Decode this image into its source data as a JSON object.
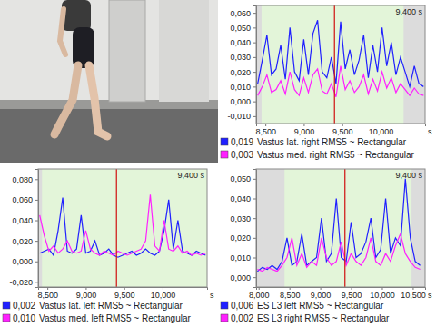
{
  "chart_data": [
    {
      "type": "line",
      "legend": "bottom",
      "grid": false,
      "x_label": "s",
      "x": [
        8400,
        8460,
        8520,
        8580,
        8640,
        8700,
        8760,
        8820,
        8880,
        8940,
        9000,
        9060,
        9120,
        9180,
        9240,
        9300,
        9360,
        9420,
        9480,
        9540,
        9600,
        9660,
        9720,
        9780,
        9840,
        9900,
        9960,
        10020,
        10080,
        10140,
        10200,
        10260,
        10320,
        10380,
        10440,
        10500,
        10560
      ],
      "xlim": [
        8380,
        10580
      ],
      "xticks": [
        {
          "value": 8500,
          "label": "8,500"
        },
        {
          "value": 9000,
          "label": "9,000"
        },
        {
          "value": 9500,
          "label": "9,500"
        },
        {
          "value": 10000,
          "label": "10,000"
        }
      ],
      "ylim": [
        -0.015,
        0.065
      ],
      "yticks": [
        {
          "value": -0.01,
          "label": "-0,010"
        },
        {
          "value": 0,
          "label": "0,000"
        },
        {
          "value": 0.01,
          "label": "0,010"
        },
        {
          "value": 0.02,
          "label": "0,020"
        },
        {
          "value": 0.03,
          "label": "0,030"
        },
        {
          "value": 0.04,
          "label": "0,040"
        },
        {
          "value": 0.05,
          "label": "0,050"
        },
        {
          "value": 0.06,
          "label": "0,060"
        }
      ],
      "highlight": [
        8450,
        10300
      ],
      "cursor": {
        "value": 9400,
        "label": "9,400 s"
      },
      "series": [
        {
          "name": "Vastus lat. right RMS5 ~ Rectangular",
          "color": "#2020ff",
          "cursor_value": {
            "value": 0.019,
            "label": "0,019"
          },
          "values": [
            0.012,
            0.028,
            0.045,
            0.018,
            0.022,
            0.038,
            0.015,
            0.05,
            0.02,
            0.014,
            0.042,
            0.018,
            0.046,
            0.055,
            0.02,
            0.016,
            0.03,
            0.012,
            0.054,
            0.022,
            0.035,
            0.018,
            0.028,
            0.045,
            0.016,
            0.038,
            0.02,
            0.05,
            0.024,
            0.04,
            0.018,
            0.03,
            0.02,
            0.01,
            0.024,
            0.012,
            0.01
          ]
        },
        {
          "name": "Vastus med. right RMS5 ~ Rectangular",
          "color": "#ff20ff",
          "cursor_value": {
            "value": 0.003,
            "label": "0,003"
          },
          "values": [
            0.004,
            0.01,
            0.018,
            0.006,
            0.008,
            0.014,
            0.005,
            0.02,
            0.008,
            0.004,
            0.016,
            0.006,
            0.018,
            0.022,
            0.007,
            0.005,
            0.012,
            0.003,
            0.024,
            0.008,
            0.014,
            0.006,
            0.01,
            0.018,
            0.005,
            0.015,
            0.007,
            0.02,
            0.009,
            0.016,
            0.006,
            0.012,
            0.008,
            0.004,
            0.009,
            0.005,
            0.004
          ]
        }
      ]
    },
    {
      "type": "line",
      "legend": "bottom",
      "grid": false,
      "x_label": "s",
      "x": [
        8400,
        8460,
        8520,
        8580,
        8640,
        8700,
        8760,
        8820,
        8880,
        8940,
        9000,
        9060,
        9120,
        9180,
        9240,
        9300,
        9360,
        9420,
        9480,
        9540,
        9600,
        9660,
        9720,
        9780,
        9840,
        9900,
        9960,
        10020,
        10080,
        10140,
        10200,
        10260,
        10320,
        10380,
        10440,
        10500,
        10560
      ],
      "xlim": [
        8380,
        10580
      ],
      "xticks": [
        {
          "value": 8500,
          "label": "8,500"
        },
        {
          "value": 9000,
          "label": "9,000"
        },
        {
          "value": 9500,
          "label": "9,500"
        },
        {
          "value": 10000,
          "label": "10,000"
        }
      ],
      "ylim": [
        -0.025,
        0.09
      ],
      "yticks": [
        {
          "value": -0.02,
          "label": "-0,020"
        },
        {
          "value": 0,
          "label": "0,000"
        },
        {
          "value": 0.02,
          "label": "0,020"
        },
        {
          "value": 0.04,
          "label": "0,040"
        },
        {
          "value": 0.06,
          "label": "0,060"
        },
        {
          "value": 0.08,
          "label": "0,080"
        }
      ],
      "highlight": [
        8430,
        10580
      ],
      "cursor": {
        "value": 9400,
        "label": "9,400 s"
      },
      "series": [
        {
          "name": "Vastus lat. left RMS5 ~ Rectangular",
          "color": "#2020ff",
          "cursor_value": {
            "value": 0.002,
            "label": "0,002"
          },
          "values": [
            0.008,
            0.01,
            0.012,
            0.006,
            0.03,
            0.062,
            0.01,
            0.008,
            0.012,
            0.045,
            0.008,
            0.01,
            0.02,
            0.006,
            0.008,
            0.012,
            0.006,
            0.004,
            0.006,
            0.008,
            0.01,
            0.006,
            0.008,
            0.012,
            0.008,
            0.006,
            0.01,
            0.03,
            0.06,
            0.012,
            0.04,
            0.01,
            0.008,
            0.006,
            0.01,
            0.008,
            0.006
          ]
        },
        {
          "name": "Vastus med. left RMS5 ~ Rectangular",
          "color": "#ff20ff",
          "cursor_value": {
            "value": 0.01,
            "label": "0,010"
          },
          "values": [
            0.045,
            0.025,
            0.01,
            0.015,
            0.008,
            0.012,
            0.02,
            0.01,
            0.008,
            0.01,
            0.03,
            0.012,
            0.008,
            0.006,
            0.01,
            0.008,
            0.006,
            0.01,
            0.008,
            0.006,
            0.008,
            0.01,
            0.012,
            0.02,
            0.065,
            0.015,
            0.01,
            0.04,
            0.012,
            0.01,
            0.015,
            0.008,
            0.01,
            0.006,
            0.008,
            0.006,
            0.008
          ]
        }
      ]
    },
    {
      "type": "line",
      "legend": "bottom",
      "grid": false,
      "x_label": "s",
      "x": [
        7980,
        8060,
        8140,
        8220,
        8300,
        8380,
        8460,
        8540,
        8620,
        8700,
        8780,
        8860,
        8940,
        9020,
        9100,
        9180,
        9260,
        9340,
        9420,
        9500,
        9580,
        9660,
        9740,
        9820,
        9900,
        9980,
        10060,
        10140,
        10220,
        10300,
        10380,
        10460,
        10540,
        10620
      ],
      "xlim": [
        7960,
        10700
      ],
      "xticks": [
        {
          "value": 8000,
          "label": "8,000"
        },
        {
          "value": 8500,
          "label": "8,500"
        },
        {
          "value": 9000,
          "label": "9,000"
        },
        {
          "value": 9500,
          "label": "9,500"
        },
        {
          "value": 10000,
          "label": "10,000"
        },
        {
          "value": 10500,
          "label": "10,500"
        }
      ],
      "ylim": [
        -0.005,
        0.055
      ],
      "yticks": [
        {
          "value": 0,
          "label": "0,000"
        },
        {
          "value": 0.01,
          "label": "0,010"
        },
        {
          "value": 0.02,
          "label": "0,020"
        },
        {
          "value": 0.03,
          "label": "0,030"
        },
        {
          "value": 0.04,
          "label": "0,040"
        },
        {
          "value": 0.05,
          "label": "0,050"
        }
      ],
      "highlight": [
        8420,
        10480
      ],
      "cursor": {
        "value": 9400,
        "label": "9,400 s"
      },
      "series": [
        {
          "name": "ES L3 left RMS5 ~ Rectangular",
          "color": "#2020ff",
          "cursor_value": {
            "value": 0.006,
            "label": "0,006"
          },
          "values": [
            0.003,
            0.005,
            0.004,
            0.006,
            0.004,
            0.008,
            0.02,
            0.006,
            0.008,
            0.022,
            0.006,
            0.008,
            0.01,
            0.03,
            0.008,
            0.012,
            0.04,
            0.01,
            0.008,
            0.028,
            0.01,
            0.012,
            0.018,
            0.03,
            0.01,
            0.014,
            0.04,
            0.012,
            0.02,
            0.016,
            0.05,
            0.02,
            0.008,
            0.006
          ]
        },
        {
          "name": "ES L3 right RMS5 ~ Rectangular",
          "color": "#ff20ff",
          "cursor_value": {
            "value": 0.002,
            "label": "0,002"
          },
          "values": [
            0.004,
            0.003,
            0.005,
            0.004,
            0.003,
            0.006,
            0.01,
            0.02,
            0.006,
            0.012,
            0.005,
            0.008,
            0.006,
            0.02,
            0.01,
            0.006,
            0.008,
            0.018,
            0.006,
            0.012,
            0.008,
            0.006,
            0.01,
            0.02,
            0.008,
            0.006,
            0.012,
            0.008,
            0.016,
            0.022,
            0.012,
            0.008,
            0.005,
            0.004
          ]
        }
      ]
    }
  ]
}
